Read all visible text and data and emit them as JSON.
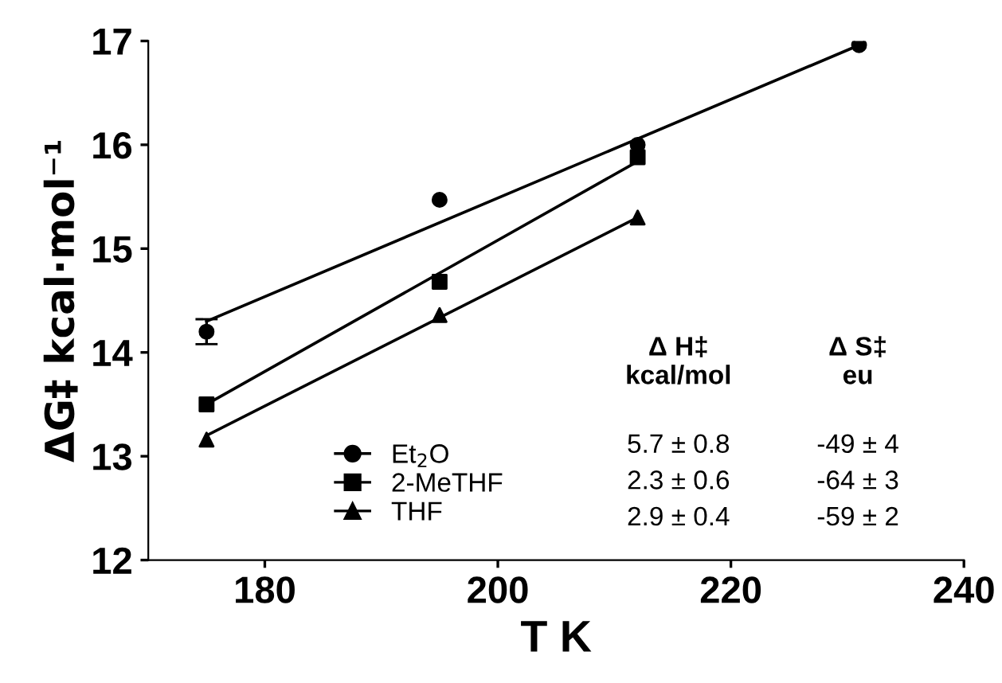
{
  "chart_data": {
    "type": "scatter",
    "xlabel": "T K",
    "ylabel": "ΔG‡ kcal·mol⁻¹",
    "xlim": [
      170,
      240
    ],
    "xticks": [
      180,
      200,
      220,
      240
    ],
    "ylim": [
      12,
      17
    ],
    "yticks": [
      12,
      13,
      14,
      15,
      16,
      17
    ],
    "grid": false,
    "legend": "bottom",
    "series": [
      {
        "name": "Et$_{2}$O",
        "color": "#000000",
        "marker": "circle",
        "x": [
          175,
          195,
          212,
          231
        ],
        "values": [
          14.2,
          15.47,
          16.0,
          16.96
        ],
        "errors": [
          0.12,
          null,
          null,
          null
        ]
      },
      {
        "name": "2-MeTHF",
        "color": "#000000",
        "marker": "square",
        "x": [
          175,
          195,
          212
        ],
        "values": [
          13.5,
          14.68,
          15.88
        ]
      },
      {
        "name": "THF",
        "color": "#000000",
        "marker": "triangle",
        "x": [
          175,
          195,
          212
        ],
        "values": [
          13.16,
          14.36,
          15.3
        ]
      },
      {
        "type": "line",
        "color": "#000000",
        "marker": "none",
        "x": [
          175,
          231
        ],
        "values": [
          14.3,
          16.96
        ]
      },
      {
        "type": "line",
        "color": "#000000",
        "marker": "none",
        "x": [
          175,
          212
        ],
        "values": [
          13.5,
          15.84
        ]
      },
      {
        "type": "line",
        "color": "#000000",
        "marker": "none",
        "x": [
          175,
          212
        ],
        "values": [
          13.2,
          15.3
        ]
      }
    ],
    "annotations": [
      "Δ H‡\nkcal/mol",
      "Δ S‡\neu",
      "5.7 ± 0.8",
      "-49 ± 4",
      "2.3 ± 0.6",
      "-64 ± 3",
      "2.9 ± 0.4",
      "-59 ± 2"
    ]
  }
}
